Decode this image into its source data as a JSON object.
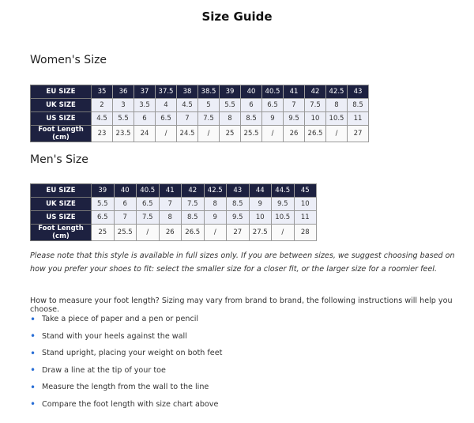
{
  "title": "Size Guide",
  "women": {
    "heading": "Women's Size",
    "rows": [
      {
        "label": "EU SIZE",
        "cells": [
          "35",
          "36",
          "37",
          "37.5",
          "38",
          "38.5",
          "39",
          "40",
          "40.5",
          "41",
          "42",
          "42.5",
          "43"
        ]
      },
      {
        "label": "UK SIZE",
        "cells": [
          "2",
          "3",
          "3.5",
          "4",
          "4.5",
          "5",
          "5.5",
          "6",
          "6.5",
          "7",
          "7.5",
          "8",
          "8.5"
        ]
      },
      {
        "label": "US SIZE",
        "cells": [
          "4.5",
          "5.5",
          "6",
          "6.5",
          "7",
          "7.5",
          "8",
          "8.5",
          "9",
          "9.5",
          "10",
          "10.5",
          "11"
        ]
      },
      {
        "label": "Foot Length (cm)",
        "cells": [
          "23",
          "23.5",
          "24",
          "/",
          "24.5",
          "/",
          "25",
          "25.5",
          "/",
          "26",
          "26.5",
          "/",
          "27"
        ]
      }
    ]
  },
  "men": {
    "heading": "Men's Size",
    "rows": [
      {
        "label": "EU SIZE",
        "cells": [
          "39",
          "40",
          "40.5",
          "41",
          "42",
          "42.5",
          "43",
          "44",
          "44.5",
          "45"
        ]
      },
      {
        "label": "UK SIZE",
        "cells": [
          "5.5",
          "6",
          "6.5",
          "7",
          "7.5",
          "8",
          "8.5",
          "9",
          "9.5",
          "10"
        ]
      },
      {
        "label": "US SIZE",
        "cells": [
          "6.5",
          "7",
          "7.5",
          "8",
          "8.5",
          "9",
          "9.5",
          "10",
          "10.5",
          "11"
        ]
      },
      {
        "label": "Foot Length (cm)",
        "cells": [
          "25",
          "25.5",
          "/",
          "26",
          "26.5",
          "/",
          "27",
          "27.5",
          "/",
          "28"
        ]
      }
    ]
  },
  "note": "Please note that this style is available in full sizes only. If you are between sizes, we suggest choosing based on how you prefer your shoes to fit: select the smaller size for a closer fit, or the larger size for a roomier feel.",
  "intro": "How to measure your foot length?  Sizing may vary from brand to brand, the following instructions will help you choose.",
  "steps": [
    "Take a piece of paper and a pen or pencil",
    "Stand with your heels against the wall",
    "Stand upright, placing your weight on both feet",
    "Draw a line at the tip of your toe",
    "Measure the length from the wall to the line",
    "Compare the foot length with size chart above"
  ],
  "colors": {
    "header": "#1d2140",
    "row": "#eceef7",
    "bullet": "#2a6fd6"
  }
}
